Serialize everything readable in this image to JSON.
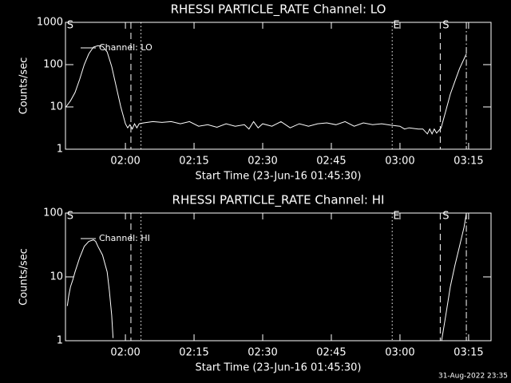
{
  "chart_data": [
    {
      "type": "line",
      "title": "RHESSI PARTICLE_RATE Channel: LO",
      "xlabel": "Start Time (23-Jun-16 01:45:30)",
      "ylabel": "Counts/sec",
      "log_y": true,
      "legend": "top-left",
      "xlim": [
        106.9,
        199.9
      ],
      "ylim": [
        1,
        1000
      ],
      "xticks": [
        {
          "value": 120,
          "label": "02:00"
        },
        {
          "value": 135,
          "label": "02:15"
        },
        {
          "value": 150,
          "label": "02:30"
        },
        {
          "value": 165,
          "label": "02:45"
        },
        {
          "value": 180,
          "label": "03:00"
        },
        {
          "value": 195,
          "label": "03:15"
        }
      ],
      "yticks": [
        1,
        10,
        100,
        1000
      ],
      "vlines": [
        {
          "x": 121.2,
          "style": "dashed"
        },
        {
          "x": 123.4,
          "style": "dotted"
        },
        {
          "x": 178.3,
          "style": "dotted"
        },
        {
          "x": 188.8,
          "style": "dashed"
        },
        {
          "x": 194.5,
          "style": "dashdot"
        }
      ],
      "annotations": [
        {
          "x": 107.2,
          "text": "S"
        },
        {
          "x": 178.5,
          "text": "E"
        },
        {
          "x": 189.3,
          "text": "S"
        }
      ],
      "series": [
        {
          "name": "Channel: LO",
          "color": "#ffffff",
          "x": [
            107,
            108,
            109,
            110,
            111,
            112,
            113,
            114,
            115,
            116,
            117,
            118,
            119,
            120,
            120.5,
            121,
            121.5,
            122,
            122.5,
            123,
            124,
            126,
            128,
            130,
            132,
            134,
            136,
            138,
            140,
            142,
            144,
            146,
            147,
            148,
            149,
            150,
            152,
            154,
            156,
            158,
            160,
            162,
            164,
            166,
            168,
            170,
            172,
            174,
            176,
            178,
            180,
            181,
            182,
            184,
            185,
            186,
            186.5,
            187,
            187.5,
            188,
            189,
            190,
            191,
            192,
            193,
            194.5
          ],
          "values": [
            10,
            14,
            22,
            45,
            100,
            180,
            260,
            280,
            270,
            200,
            90,
            30,
            10,
            4,
            3.2,
            3.8,
            3,
            4,
            3.2,
            4,
            4.2,
            4.5,
            4.3,
            4.5,
            4,
            4.5,
            3.5,
            3.8,
            3.3,
            4,
            3.5,
            3.8,
            3,
            4.5,
            3.2,
            4,
            3.5,
            4.5,
            3.2,
            4,
            3.5,
            4,
            4.2,
            3.8,
            4.5,
            3.5,
            4.2,
            3.8,
            4,
            3.7,
            3.5,
            3,
            3.2,
            3,
            3,
            2.3,
            3,
            2.3,
            3,
            2.4,
            3.2,
            8,
            20,
            40,
            80,
            180
          ]
        }
      ]
    },
    {
      "type": "line",
      "title": "RHESSI PARTICLE_RATE Channel: HI",
      "xlabel": "Start Time (23-Jun-16 01:45:30)",
      "ylabel": "Counts/sec",
      "log_y": true,
      "legend": "top-left",
      "xlim": [
        106.9,
        199.9
      ],
      "ylim": [
        1,
        100
      ],
      "xticks": [
        {
          "value": 120,
          "label": "02:00"
        },
        {
          "value": 135,
          "label": "02:15"
        },
        {
          "value": 150,
          "label": "02:30"
        },
        {
          "value": 165,
          "label": "02:45"
        },
        {
          "value": 180,
          "label": "03:00"
        },
        {
          "value": 195,
          "label": "03:15"
        }
      ],
      "yticks": [
        1,
        10,
        100
      ],
      "vlines": [
        {
          "x": 121.2,
          "style": "dashed"
        },
        {
          "x": 123.4,
          "style": "dotted"
        },
        {
          "x": 178.3,
          "style": "dotted"
        },
        {
          "x": 188.8,
          "style": "dashed"
        },
        {
          "x": 194.5,
          "style": "dashdot"
        }
      ],
      "annotations": [
        {
          "x": 107.2,
          "text": "S"
        },
        {
          "x": 178.5,
          "text": "E"
        },
        {
          "x": 189.3,
          "text": "S"
        }
      ],
      "series": [
        {
          "name": "Channel: HI",
          "color": "#ffffff",
          "x": [
            107.3,
            107.6,
            108,
            108.5,
            109,
            110,
            111,
            112,
            113,
            113.5,
            114,
            115,
            116,
            116.5,
            117,
            117.3,
            150,
            189.1,
            190,
            191,
            192,
            193,
            194,
            194.5
          ],
          "values": [
            3.5,
            5,
            7,
            9,
            12,
            20,
            30,
            36,
            38,
            36,
            30,
            22,
            12,
            6,
            2.5,
            1.1,
            null,
            1,
            2.5,
            7,
            15,
            30,
            60,
            100
          ]
        }
      ]
    }
  ],
  "footer": "31-Aug-2022 23:35"
}
